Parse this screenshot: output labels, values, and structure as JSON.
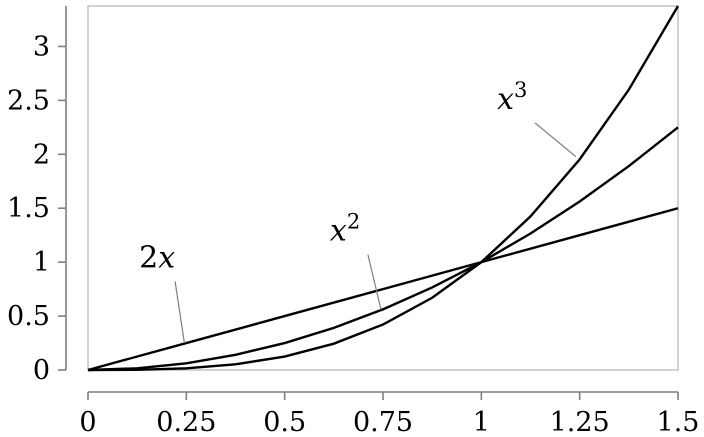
{
  "chart_data": {
    "type": "line",
    "title": "",
    "xlabel": "",
    "ylabel": "",
    "xlim": [
      0,
      1.5
    ],
    "ylim": [
      0,
      3.375
    ],
    "grid": false,
    "xticks": [
      {
        "value": 0,
        "label": "0"
      },
      {
        "value": 0.25,
        "label": "0.25"
      },
      {
        "value": 0.5,
        "label": "0.5"
      },
      {
        "value": 0.75,
        "label": "0.75"
      },
      {
        "value": 1,
        "label": "1"
      },
      {
        "value": 1.25,
        "label": "1.25"
      },
      {
        "value": 1.5,
        "label": "1.5"
      }
    ],
    "yticks": [
      {
        "value": 0,
        "label": "0"
      },
      {
        "value": 0.5,
        "label": "0.5"
      },
      {
        "value": 1,
        "label": "1"
      },
      {
        "value": 1.5,
        "label": "1.5"
      },
      {
        "value": 2,
        "label": "2"
      },
      {
        "value": 2.5,
        "label": "2.5"
      },
      {
        "value": 3,
        "label": "3"
      }
    ],
    "series": [
      {
        "label_base": "2",
        "label_var": "x",
        "label_sup": "",
        "color": "#000000",
        "x": [
          0,
          0.25,
          0.5,
          0.75,
          1,
          1.25,
          1.5
        ],
        "y": [
          0,
          0.25,
          0.5,
          0.75,
          1,
          1.25,
          1.5
        ],
        "label_at": {
          "x": 0.13,
          "y": 0.95
        },
        "leader_to": {
          "x": 0.245,
          "y": 0.25
        }
      },
      {
        "label_base": "",
        "label_var": "x",
        "label_sup": "2",
        "color": "#000000",
        "x": [
          0,
          0.125,
          0.25,
          0.375,
          0.5,
          0.625,
          0.75,
          0.875,
          1,
          1.125,
          1.25,
          1.375,
          1.5
        ],
        "y": [
          0,
          0.0156,
          0.0625,
          0.1406,
          0.25,
          0.3906,
          0.5625,
          0.7656,
          1,
          1.2656,
          1.5625,
          1.8906,
          2.25
        ],
        "label_at": {
          "x": 0.615,
          "y": 1.2
        },
        "leader_to": {
          "x": 0.745,
          "y": 0.56
        }
      },
      {
        "label_base": "",
        "label_var": "x",
        "label_sup": "3",
        "color": "#000000",
        "x": [
          0,
          0.125,
          0.25,
          0.375,
          0.5,
          0.625,
          0.75,
          0.875,
          1,
          1.125,
          1.25,
          1.375,
          1.5
        ],
        "y": [
          0,
          0.002,
          0.0156,
          0.0527,
          0.125,
          0.2441,
          0.4219,
          0.6699,
          1,
          1.4238,
          1.9531,
          2.5996,
          3.375
        ],
        "label_at": {
          "x": 1.04,
          "y": 2.42
        },
        "leader_to": {
          "x": 1.24,
          "y": 1.98
        }
      }
    ]
  }
}
